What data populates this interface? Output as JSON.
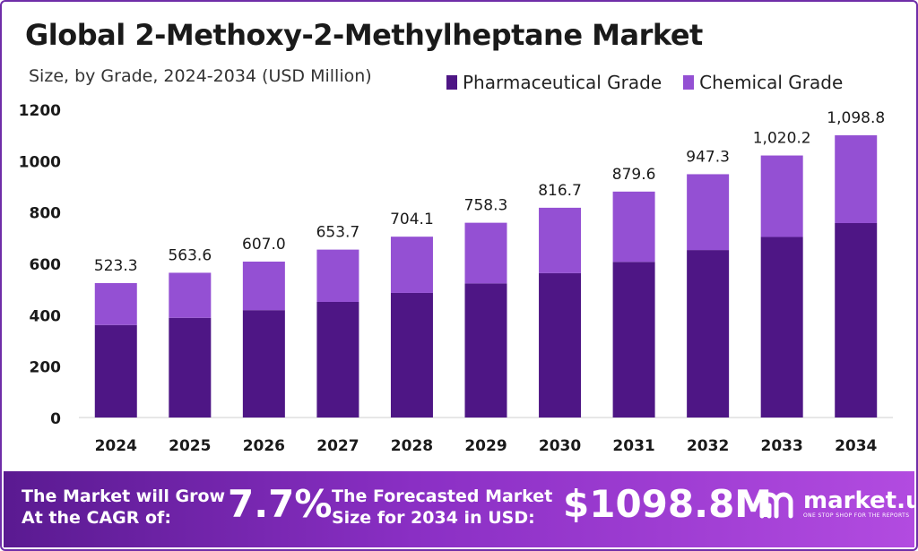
{
  "title": "Global 2-Methoxy-2-Methylheptane Market",
  "subtitle": "Size, by Grade, 2024-2034 (USD Million)",
  "colors": {
    "pharmaceutical": "#4e1685",
    "chemical": "#9450d3"
  },
  "chart_data": {
    "type": "bar",
    "stacked": true,
    "categories": [
      "2024",
      "2025",
      "2026",
      "2027",
      "2028",
      "2029",
      "2030",
      "2031",
      "2032",
      "2033",
      "2034"
    ],
    "series": [
      {
        "name": "Pharmaceutical Grade",
        "values": [
          360,
          388,
          418,
          450,
          485,
          522,
          562,
          606,
          652,
          703,
          757
        ]
      },
      {
        "name": "Chemical Grade",
        "values": [
          163.3,
          175.6,
          189.0,
          203.7,
          219.1,
          236.3,
          254.7,
          273.6,
          295.3,
          317.2,
          341.8
        ]
      }
    ],
    "totals": [
      "523.3",
      "563.6",
      "607.0",
      "653.7",
      "704.1",
      "758.3",
      "816.7",
      "879.6",
      "947.3",
      "1,020.2",
      "1,098.8"
    ],
    "ylim": [
      0,
      1200
    ],
    "yticks": [
      "0",
      "200",
      "400",
      "600",
      "800",
      "1000",
      "1200"
    ],
    "grid": false,
    "legend": "top-right"
  },
  "banner": {
    "cagr_label_1": "The Market will Grow",
    "cagr_label_2": "At the CAGR of:",
    "cagr_value": "7.7%",
    "forecast_label_1": "The Forecasted Market",
    "forecast_label_2": "Size for 2034 in USD:",
    "forecast_value": "$1098.8M",
    "brand": "market.us",
    "tagline": "ONE STOP SHOP FOR THE REPORTS"
  }
}
